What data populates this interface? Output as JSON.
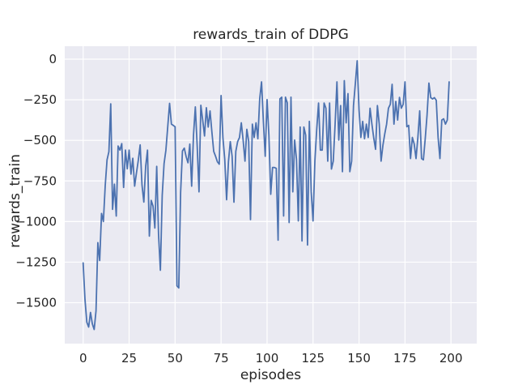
{
  "figure": {
    "title": "rewards_train of DDPG",
    "xlabel": "episodes",
    "ylabel": "rewards_train"
  },
  "chart_data": {
    "type": "line",
    "title": "rewards_train of DDPG",
    "xlabel": "episodes",
    "ylabel": "rewards_train",
    "grid": true,
    "legend": false,
    "style": "seaborn-darkgrid",
    "xlim": [
      -10,
      214
    ],
    "ylim": [
      -1752,
      80
    ],
    "xtick_values": [
      0,
      25,
      50,
      75,
      100,
      125,
      150,
      175,
      200
    ],
    "xtick_labels": [
      "0",
      "25",
      "50",
      "75",
      "100",
      "125",
      "150",
      "175",
      "200"
    ],
    "ytick_values": [
      0,
      -250,
      -500,
      -750,
      -1000,
      -1250,
      -1500
    ],
    "ytick_labels": [
      "0",
      "−250",
      "−500",
      "−750",
      "−1000",
      "−1250",
      "−1500"
    ],
    "colors": {
      "figure_bg": "#ffffff",
      "axes_bg": "#eaeaf2",
      "grid": "#ffffff",
      "line": "#4c72b0",
      "text": "#262626"
    },
    "series": [
      {
        "name": "rewards_train",
        "x_start": 0,
        "x_step": 1,
        "values": [
          -1255,
          -1480,
          -1620,
          -1650,
          -1560,
          -1630,
          -1665,
          -1550,
          -1130,
          -1240,
          -950,
          -1000,
          -780,
          -620,
          -570,
          -275,
          -925,
          -770,
          -966,
          -535,
          -560,
          -520,
          -790,
          -560,
          -675,
          -560,
          -708,
          -610,
          -782,
          -700,
          -622,
          -528,
          -775,
          -880,
          -660,
          -560,
          -1090,
          -870,
          -905,
          -1040,
          -660,
          -1080,
          -1300,
          -838,
          -643,
          -560,
          -416,
          -272,
          -400,
          -408,
          -416,
          -1396,
          -1409,
          -820,
          -565,
          -548,
          -600,
          -638,
          -523,
          -782,
          -468,
          -294,
          -533,
          -817,
          -284,
          -374,
          -473,
          -299,
          -418,
          -319,
          -448,
          -568,
          -598,
          -632,
          -647,
          -224,
          -483,
          -617,
          -866,
          -632,
          -508,
          -598,
          -881,
          -568,
          -508,
          -483,
          -392,
          -500,
          -628,
          -432,
          -506,
          -988,
          -400,
          -482,
          -392,
          -490,
          -244,
          -140,
          -383,
          -598,
          -249,
          -468,
          -832,
          -667,
          -667,
          -672,
          -1115,
          -244,
          -234,
          -966,
          -234,
          -269,
          -1006,
          -234,
          -817,
          -498,
          -617,
          -996,
          -418,
          -1120,
          -418,
          -468,
          -1145,
          -383,
          -817,
          -996,
          -628,
          -432,
          -270,
          -560,
          -560,
          -270,
          -302,
          -628,
          -270,
          -677,
          -628,
          -400,
          -140,
          -498,
          -286,
          -693,
          -132,
          -392,
          -212,
          -693,
          -628,
          -286,
          -150,
          -10,
          -310,
          -482,
          -383,
          -490,
          -400,
          -482,
          -302,
          -400,
          -485,
          -555,
          -286,
          -400,
          -628,
          -530,
          -460,
          -400,
          -302,
          -278,
          -155,
          -400,
          -260,
          -375,
          -235,
          -302,
          -278,
          -140,
          -416,
          -408,
          -612,
          -482,
          -522,
          -612,
          -482,
          -318,
          -612,
          -620,
          -490,
          -343,
          -147,
          -237,
          -245,
          -237,
          -253,
          -482,
          -612,
          -375,
          -367,
          -400,
          -375,
          -140
        ]
      }
    ]
  }
}
